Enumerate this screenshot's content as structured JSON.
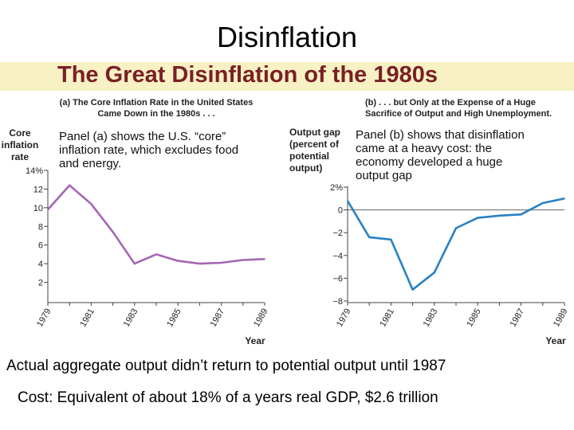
{
  "slide": {
    "title": "Disinflation",
    "banner_title": "The Great Disinflation of the 1980s",
    "bottom_line_1": "Actual aggregate  output didn’t return to potential  output until 1987",
    "bottom_line_2": "Cost: Equivalent  of about  18% of a years  real GDP, $2.6 trillion"
  },
  "chart_data": [
    {
      "type": "line",
      "panel_title_lines": [
        "(a) The Core Inflation Rate in the United States",
        "Came Down in the 1980s . . ."
      ],
      "ylabel_lines": [
        "Core",
        "inflation",
        "rate"
      ],
      "xlabel": "Year",
      "annotation_lines": [
        "Panel (a) shows the U.S. “core”",
        "inflation rate, which excludes food",
        "and energy."
      ],
      "x": [
        1979,
        1980,
        1981,
        1982,
        1983,
        1984,
        1985,
        1986,
        1987,
        1988,
        1989
      ],
      "series": [
        {
          "name": "Core inflation rate",
          "values": [
            9.8,
            12.4,
            10.4,
            7.4,
            4.0,
            5.0,
            4.3,
            4.0,
            4.1,
            4.4,
            4.5
          ]
        }
      ],
      "xticks": [
        "1979",
        "1981",
        "1983",
        "1985",
        "1987",
        "1989"
      ],
      "yticks": [
        "2",
        "4",
        "6",
        "8",
        "10",
        "12",
        "14%"
      ],
      "ylim": [
        0,
        14
      ],
      "color": "#a566b5"
    },
    {
      "type": "line",
      "panel_title_lines": [
        "(b) . . . but Only at the Expense of a Huge",
        "Sacrifice of Output and High Unemployment."
      ],
      "ylabel_lines": [
        "Output gap",
        "(percent of",
        "potential",
        "output)"
      ],
      "xlabel": "Year",
      "annotation_lines": [
        "Panel (b) shows that disinflation",
        "came at a heavy cost: the",
        "economy developed a huge",
        "output gap"
      ],
      "x": [
        1979,
        1980,
        1981,
        1982,
        1983,
        1984,
        1985,
        1986,
        1987,
        1988,
        1989
      ],
      "series": [
        {
          "name": "Output gap",
          "values": [
            0.8,
            -2.4,
            -2.6,
            -7.0,
            -5.5,
            -1.6,
            -0.7,
            -0.5,
            -0.4,
            0.6,
            1.0
          ]
        }
      ],
      "xticks": [
        "1979",
        "1981",
        "1983",
        "1985",
        "1987",
        "1989"
      ],
      "yticks": [
        "2%",
        "0",
        "−2",
        "−4",
        "−6",
        "−8"
      ],
      "ylim": [
        -8,
        2
      ],
      "color": "#2a81c3"
    }
  ]
}
